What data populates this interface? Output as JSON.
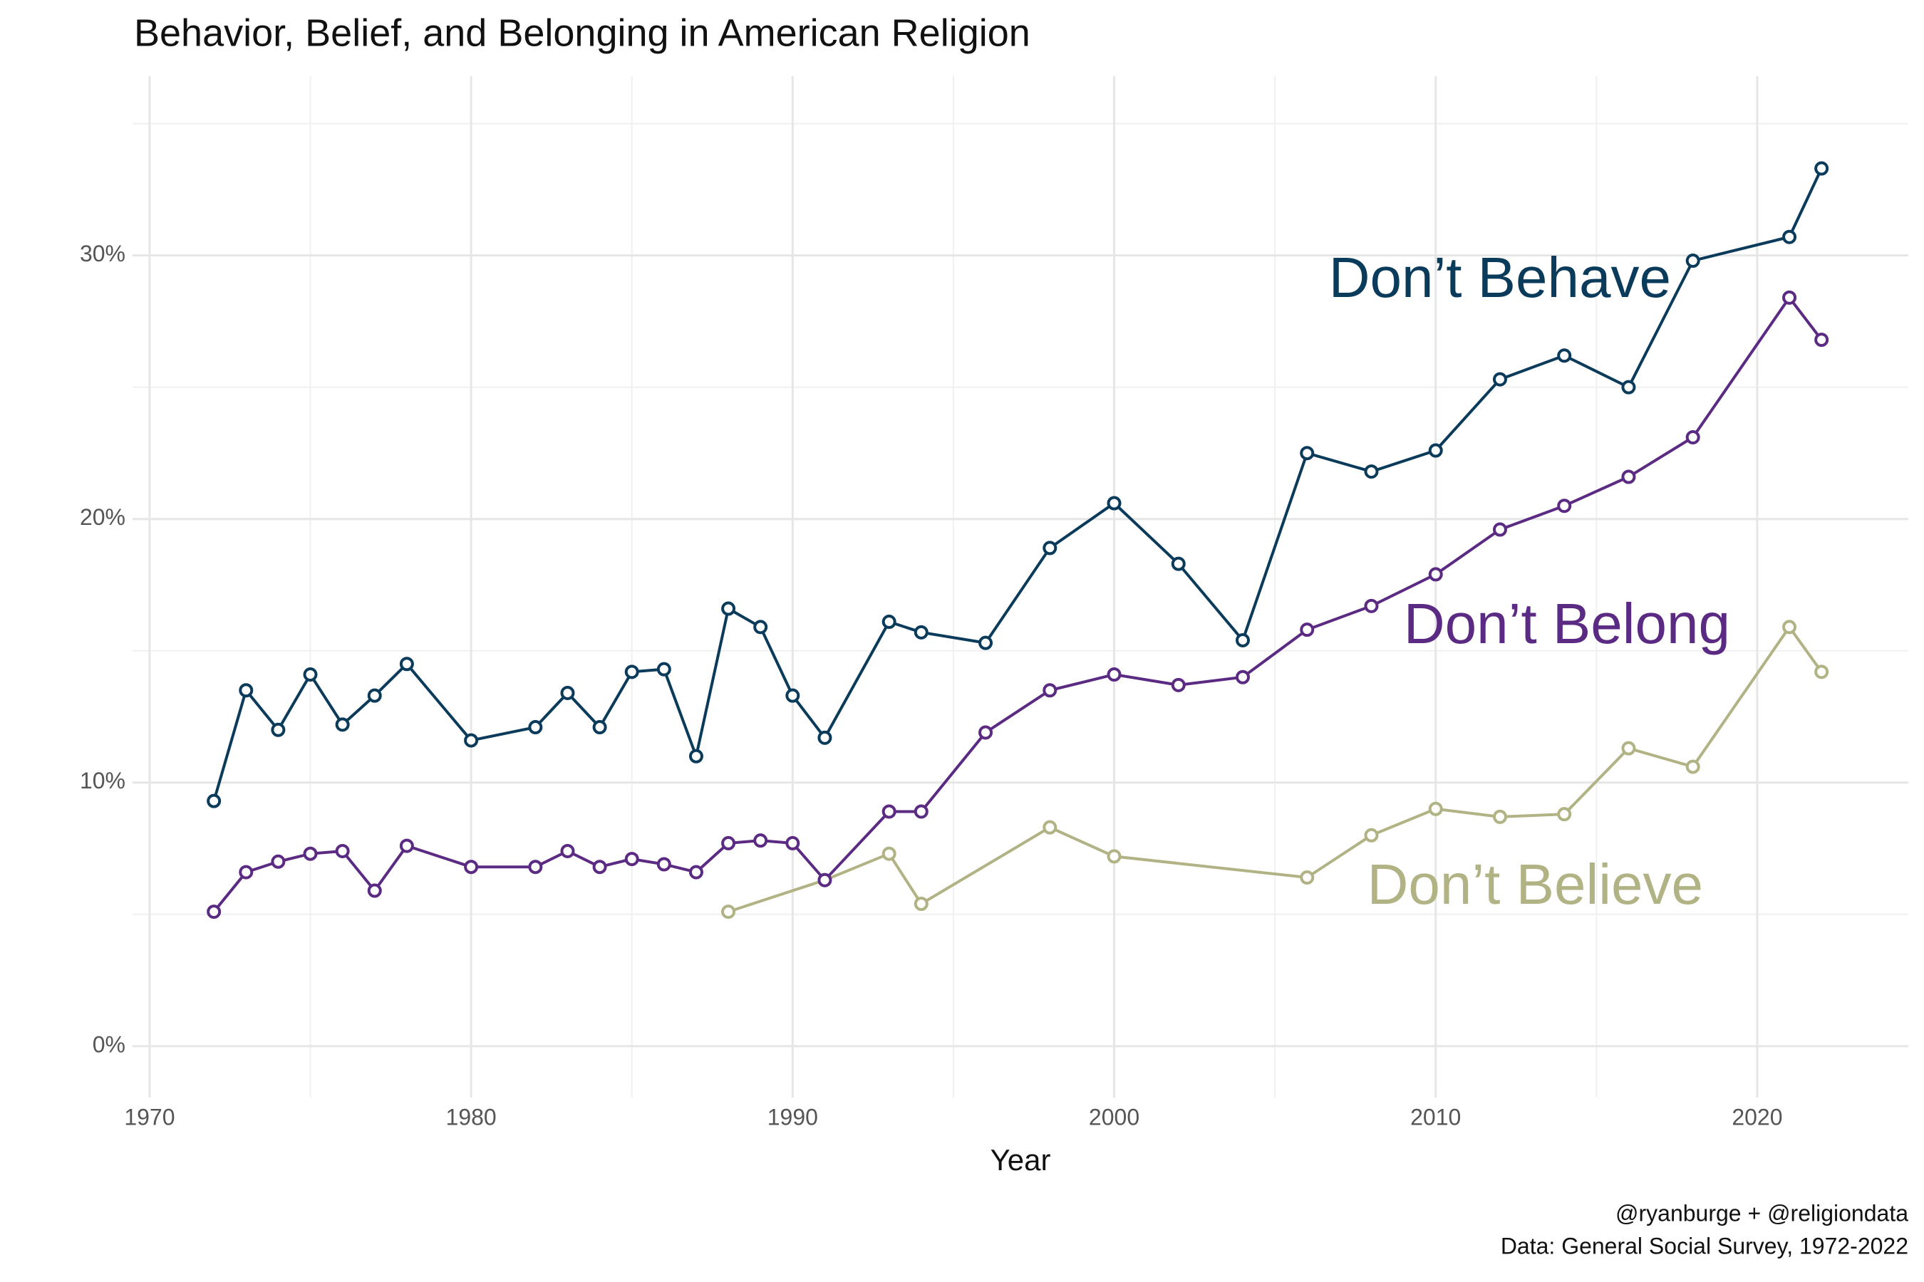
{
  "chart_data": {
    "type": "line",
    "title": "Behavior, Belief, and Belonging in American Religion",
    "x_label": "Year",
    "caption": [
      "@ryanburge + @religiondata",
      "Data: General Social Survey, 1972-2022"
    ],
    "annotations": [
      "Don’t Behave",
      "Don’t Belong",
      "Don’t Believe"
    ],
    "xlim": [
      1969.47,
      2024.7
    ],
    "xticks": [
      1970,
      1980,
      1990,
      2000,
      2010,
      2020
    ],
    "xminor": [
      1975,
      1985,
      1995,
      2005,
      2015
    ],
    "ylim": [
      -1.95,
      36.8
    ],
    "yticks": [
      {
        "value": 0,
        "label": "0%"
      },
      {
        "value": 10,
        "label": "10%"
      },
      {
        "value": 20,
        "label": "20%"
      },
      {
        "value": 30,
        "label": "30%"
      }
    ],
    "yminor": [
      5,
      15,
      25,
      35
    ],
    "grid": true,
    "series": [
      {
        "name": "Don’t Behave",
        "color": "#0b3b5b",
        "x": [
          1972,
          1973,
          1974,
          1975,
          1976,
          1977,
          1978,
          1980,
          1982,
          1983,
          1984,
          1985,
          1986,
          1987,
          1988,
          1989,
          1990,
          1991,
          1993,
          1994,
          1996,
          1998,
          2000,
          2002,
          2004,
          2006,
          2008,
          2010,
          2012,
          2014,
          2016,
          2018,
          2021,
          2022
        ],
        "values": [
          9.3,
          13.5,
          12.0,
          14.1,
          12.2,
          13.3,
          14.5,
          11.6,
          12.1,
          13.4,
          12.1,
          14.2,
          14.3,
          11.0,
          16.6,
          15.9,
          13.3,
          11.7,
          16.1,
          15.7,
          15.3,
          18.9,
          20.6,
          18.3,
          15.4,
          22.5,
          21.8,
          22.6,
          25.3,
          26.2,
          25.0,
          29.8,
          30.7,
          33.3
        ]
      },
      {
        "name": "Don’t Belong",
        "color": "#5b2a83",
        "x": [
          1972,
          1973,
          1974,
          1975,
          1976,
          1977,
          1978,
          1980,
          1982,
          1983,
          1984,
          1985,
          1986,
          1987,
          1988,
          1989,
          1990,
          1991,
          1993,
          1994,
          1996,
          1998,
          2000,
          2002,
          2004,
          2006,
          2008,
          2010,
          2012,
          2014,
          2016,
          2018,
          2021,
          2022
        ],
        "values": [
          5.1,
          6.6,
          7.0,
          7.3,
          7.4,
          5.9,
          7.6,
          6.8,
          6.8,
          7.4,
          6.8,
          7.1,
          6.9,
          6.6,
          7.7,
          7.8,
          7.7,
          6.3,
          8.9,
          8.9,
          11.9,
          13.5,
          14.1,
          13.7,
          14.0,
          15.8,
          16.7,
          17.9,
          19.6,
          20.5,
          21.6,
          23.1,
          28.4,
          26.8
        ]
      },
      {
        "name": "Don’t Believe",
        "color": "#b1b384",
        "x": [
          1988,
          1991,
          1993,
          1994,
          1998,
          2000,
          2006,
          2008,
          2010,
          2012,
          2014,
          2016,
          2018,
          2021,
          2022
        ],
        "values": [
          5.1,
          6.3,
          7.3,
          5.4,
          8.3,
          7.2,
          6.4,
          8.0,
          9.0,
          8.7,
          8.8,
          11.3,
          10.6,
          15.9,
          14.2
        ]
      }
    ]
  }
}
